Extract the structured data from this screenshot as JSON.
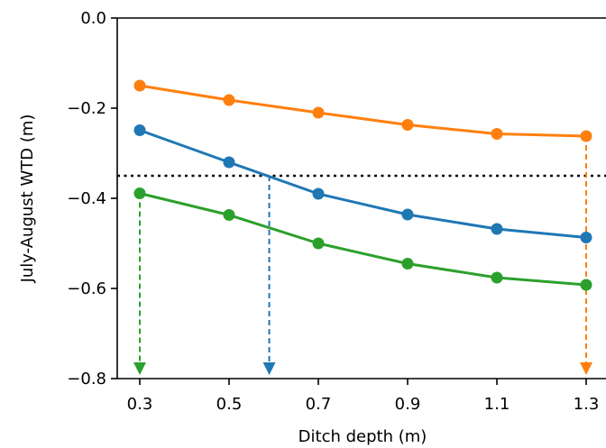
{
  "chart_data": {
    "type": "line",
    "title": "",
    "xlabel": "Ditch depth (m)",
    "ylabel": "July-August WTD (m)",
    "xlim": [
      0.25,
      1.33
    ],
    "ylim": [
      -0.8,
      0.0
    ],
    "xticks": [
      "0.3",
      "0.5",
      "0.7",
      "0.9",
      "1.1",
      "1.3"
    ],
    "yticks": [
      "0.0",
      "−0.2",
      "−0.4",
      "−0.6",
      "−0.8"
    ],
    "x": [
      0.3,
      0.5,
      0.7,
      0.9,
      1.1,
      1.3
    ],
    "series": [
      {
        "color": "#ff7f0e",
        "values": [
          -0.15,
          -0.182,
          -0.21,
          -0.237,
          -0.257,
          -0.262
        ]
      },
      {
        "color": "#1f77b4",
        "values": [
          -0.249,
          -0.32,
          -0.39,
          -0.436,
          -0.468,
          -0.487
        ]
      },
      {
        "color": "#2ca02c",
        "values": [
          -0.389,
          -0.437,
          -0.5,
          -0.545,
          -0.576,
          -0.592
        ]
      }
    ],
    "threshold": {
      "y": -0.35,
      "style": "dotted",
      "color": "#000000"
    },
    "arrows": [
      {
        "x": 0.3,
        "from_y": -0.389,
        "color": "#2ca02c"
      },
      {
        "x": 0.59,
        "from_y": -0.35,
        "color": "#1f77b4"
      },
      {
        "x": 1.3,
        "from_y": -0.262,
        "color": "#ff7f0e"
      }
    ],
    "grid": false,
    "legend": "none"
  }
}
